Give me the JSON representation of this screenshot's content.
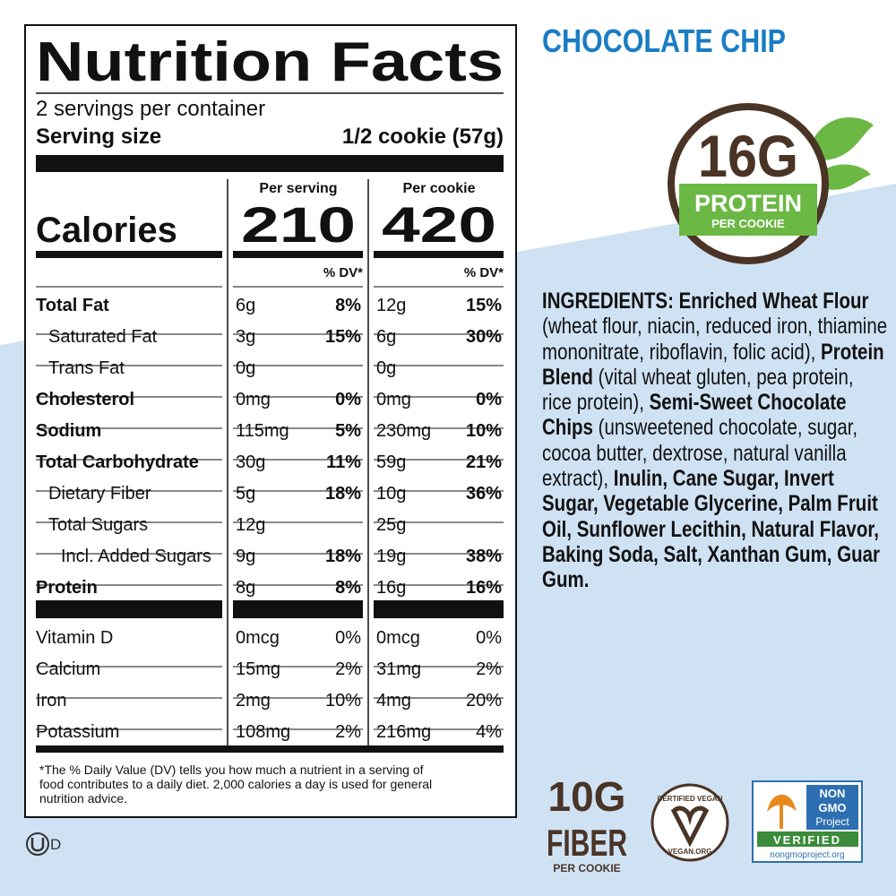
{
  "label": {
    "title": "Nutrition Facts",
    "servings": "2 servings per container",
    "serving_size_label": "Serving size",
    "serving_size": "1/2 cookie (57g)",
    "columns": [
      "Per serving",
      "Per cookie"
    ],
    "calories_label": "Calories",
    "calories": [
      210,
      420
    ],
    "dv_header": "% DV*",
    "rows": [
      {
        "name": "Total Fat",
        "bold": true,
        "serving": [
          "6g",
          "8%"
        ],
        "cookie": [
          "12g",
          "15%"
        ]
      },
      {
        "name": "Saturated Fat",
        "indent": 1,
        "serving": [
          "3g",
          "15%"
        ],
        "cookie": [
          "6g",
          "30%"
        ]
      },
      {
        "name": "Trans Fat",
        "indent": 1,
        "serving": [
          "0g"
        ],
        "cookie": [
          "0g"
        ]
      },
      {
        "name": "Cholesterol",
        "bold": true,
        "serving": [
          "0mg",
          "0%"
        ],
        "cookie": [
          "0mg",
          "0%"
        ]
      },
      {
        "name": "Sodium",
        "bold": true,
        "serving": [
          "115mg",
          "5%"
        ],
        "cookie": [
          "230mg",
          "10%"
        ]
      },
      {
        "name": "Total Carbohydrate",
        "bold": true,
        "serving": [
          "30g",
          "11%"
        ],
        "cookie": [
          "59g",
          "21%"
        ]
      },
      {
        "name": "Dietary Fiber",
        "indent": 1,
        "serving": [
          "5g",
          "18%"
        ],
        "cookie": [
          "10g",
          "36%"
        ]
      },
      {
        "name": "Total Sugars",
        "indent": 1,
        "serving": [
          "12g"
        ],
        "cookie": [
          "25g"
        ]
      },
      {
        "name": "Incl. Added Sugars",
        "indent": 2,
        "serving": [
          "9g",
          "18%"
        ],
        "cookie": [
          "19g",
          "38%"
        ]
      },
      {
        "name": "Protein",
        "bold": true,
        "serving": [
          "8g",
          "8%"
        ],
        "cookie": [
          "16g",
          "16%"
        ]
      }
    ],
    "vitamins": [
      {
        "name": "Vitamin D",
        "serving": [
          "0mcg",
          "0%"
        ],
        "cookie": [
          "0mcg",
          "0%"
        ]
      },
      {
        "name": "Calcium",
        "serving": [
          "15mg",
          "2%"
        ],
        "cookie": [
          "31mg",
          "2%"
        ]
      },
      {
        "name": "Iron",
        "serving": [
          "2mg",
          "10%"
        ],
        "cookie": [
          "4mg",
          "20%"
        ]
      },
      {
        "name": "Potassium",
        "serving": [
          "108mg",
          "2%"
        ],
        "cookie": [
          "216mg",
          "4%"
        ]
      }
    ],
    "footnote": [
      "*The % Daily Value (DV) tells you how much a nutrient in a serving of",
      "food contributes to a daily diet. 2,000 calories a day is used for general",
      "nutrition advice."
    ]
  },
  "flavor": "CHOCOLATE CHIP",
  "protein_badge": {
    "amount": "16G",
    "label": "PROTEIN",
    "sub": "PER COOKIE"
  },
  "ingredients": [
    {
      "text": "INGREDIENTS: Enriched Wheat Flour",
      "bold": true
    },
    {
      "text": " (wheat flour, niacin, reduced iron, thiamine mononitrate, riboflavin, folic acid), "
    },
    {
      "text": "Protein Blend",
      "bold": true
    },
    {
      "text": " (vital wheat gluten, pea protein, rice protein), "
    },
    {
      "text": "Semi-Sweet Chocolate Chips",
      "bold": true
    },
    {
      "text": " (unsweetened chocolate, sugar, cocoa butter, dextrose, natural vanilla extract), "
    },
    {
      "text": "Inulin, Cane Sugar, Invert Sugar, Vegetable Glycerine, Palm Fruit Oil, Sunflower Lecithin, Natural Flavor, Baking Soda, Salt, Xanthan Gum, Guar Gum.",
      "bold": true
    }
  ],
  "fiber_badge": {
    "amount": "10G",
    "label": "FIBER",
    "sub": "PER COOKIE"
  },
  "vegan_badge": {
    "top": "CERTIFIED VEGAN",
    "bottom": "VEGAN.ORG"
  },
  "nongmo_badge": {
    "line1": "NON",
    "line2": "GMO",
    "line3": "Project",
    "verified": "VERIFIED",
    "url": "nongmoproject.org"
  },
  "kosher_mark": "D"
}
